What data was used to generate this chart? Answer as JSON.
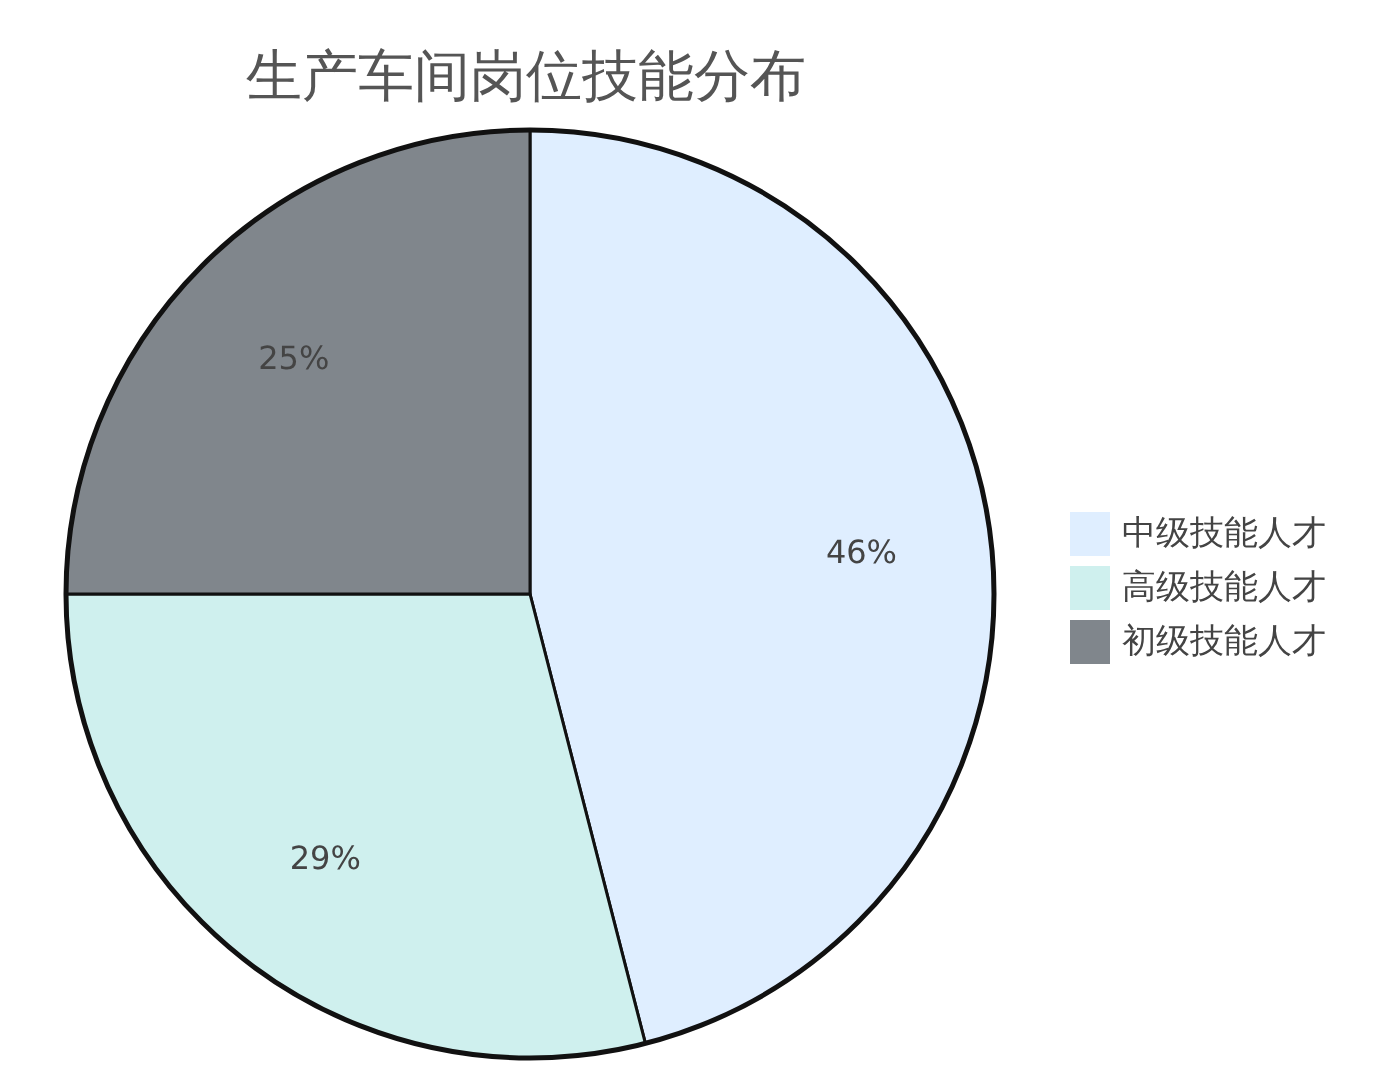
{
  "chart_data": {
    "type": "pie",
    "title": "生产车间岗位技能分布",
    "categories": [
      "中级技能人才",
      "高级技能人才",
      "初级技能人才"
    ],
    "values": [
      46,
      29,
      25
    ],
    "colors": [
      "#dfeeff",
      "#cff0ee",
      "#80868c"
    ],
    "value_labels": [
      "46%",
      "29%",
      "25%"
    ],
    "legend": "right"
  }
}
